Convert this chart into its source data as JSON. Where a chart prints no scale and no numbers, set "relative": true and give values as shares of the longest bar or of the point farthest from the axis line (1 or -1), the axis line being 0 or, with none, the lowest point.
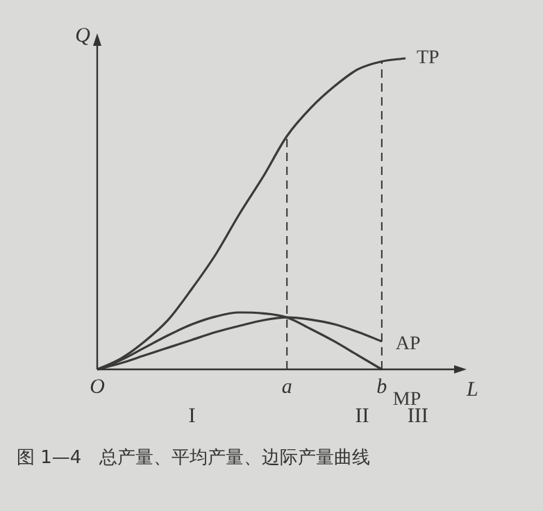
{
  "chart_data": {
    "type": "line",
    "relative": true,
    "xlabel": "L",
    "ylabel": "Q",
    "categories": [
      "O",
      null,
      null,
      null,
      null,
      null,
      null,
      null,
      "a",
      null,
      null,
      null,
      "b",
      null
    ],
    "series": [
      {
        "name": "TP",
        "color": "#3a3a3a",
        "values": [
          0,
          0.035,
          0.09,
          0.16,
          0.26,
          0.37,
          0.5,
          0.62,
          0.75,
          0.84,
          0.91,
          0.965,
          0.99,
          1
        ]
      },
      {
        "name": "AP",
        "color": "#3a3a3a",
        "values": [
          0,
          0.02,
          0.045,
          0.07,
          0.095,
          0.12,
          0.14,
          0.158,
          0.167,
          0.16,
          0.145,
          0.12,
          0.09,
          null
        ]
      },
      {
        "name": "MP",
        "color": "#3a3a3a",
        "values": [
          0,
          0.03,
          0.07,
          0.11,
          0.145,
          0.17,
          0.183,
          0.18,
          0.167,
          0.13,
          0.09,
          0.045,
          0,
          null
        ]
      }
    ],
    "ref_lines": [
      {
        "axis": "x",
        "value": "a",
        "line_style": "dashed"
      },
      {
        "axis": "x",
        "value": "b",
        "line_style": "dashed"
      }
    ],
    "annotations": [
      "I",
      "II",
      "III",
      "图 1—4　总产量、平均产量、边际产量曲线"
    ],
    "marker": "none",
    "line_style": "solid",
    "grid": false,
    "legend": false
  }
}
